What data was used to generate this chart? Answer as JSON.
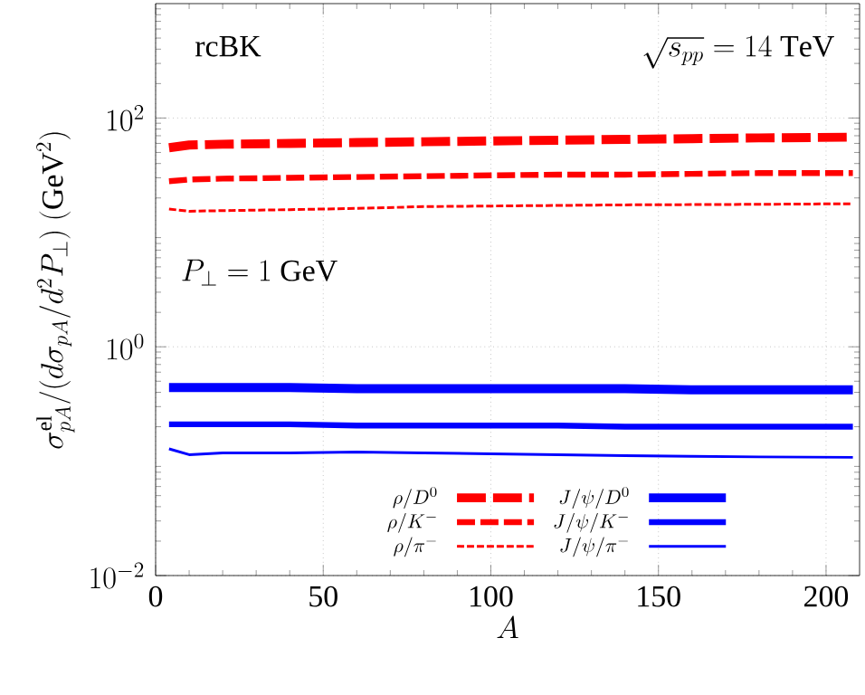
{
  "chart_data": {
    "type": "line",
    "xlabel": "A",
    "ylabel": "\\sigma^{\\mathrm{el}}_{pA}/(d\\sigma_{pA}/d^2P_\\perp)\\ (\\mathrm{GeV}^2)",
    "annotations": [
      "rcBK",
      "\\sqrt{s_{pp}} = 14\\ \\mathrm{TeV}",
      "P_\\perp = 1\\ \\mathrm{GeV}"
    ],
    "x": [
      4,
      10,
      20,
      40,
      60,
      80,
      100,
      120,
      140,
      160,
      180,
      208
    ],
    "series": [
      {
        "name": "\\rho/D^0",
        "color": "#ff0000",
        "line_style": "dashed",
        "values": [
          55,
          58,
          59,
          60,
          61,
          62,
          63,
          64,
          65,
          66,
          67,
          68
        ]
      },
      {
        "name": "\\rho/K^-",
        "color": "#ff0000",
        "line_style": "dashed",
        "values": [
          28,
          29,
          29.5,
          30,
          30.5,
          31,
          31.5,
          32,
          32,
          32.5,
          33,
          33
        ]
      },
      {
        "name": "\\rho/\\pi^-",
        "color": "#ff0000",
        "line_style": "dashed",
        "values": [
          16,
          15.3,
          15.5,
          15.8,
          16.2,
          16.8,
          17,
          17.2,
          17.4,
          17.5,
          17.6,
          17.8
        ]
      },
      {
        "name": "J/\\psi/D^0",
        "color": "#0000ff",
        "line_style": "solid",
        "values": [
          0.44,
          0.44,
          0.44,
          0.44,
          0.43,
          0.43,
          0.43,
          0.43,
          0.43,
          0.42,
          0.42,
          0.42
        ]
      },
      {
        "name": "J/\\psi/K^-",
        "color": "#0000ff",
        "line_style": "solid",
        "values": [
          0.21,
          0.21,
          0.21,
          0.21,
          0.205,
          0.205,
          0.205,
          0.205,
          0.2,
          0.2,
          0.2,
          0.2
        ]
      },
      {
        "name": "J/\\psi/\\pi^-",
        "color": "#0000ff",
        "line_style": "solid",
        "values": [
          0.128,
          0.114,
          0.118,
          0.118,
          0.12,
          0.118,
          0.116,
          0.114,
          0.112,
          0.11,
          0.109,
          0.108
        ]
      }
    ],
    "xlim": [
      0,
      210
    ],
    "xticks": [
      0,
      50,
      100,
      150,
      200
    ],
    "ylim": [
      0.01,
      1000
    ],
    "yticks": [
      {
        "value": 0.01,
        "label": "10^{-2}"
      },
      {
        "value": 1,
        "label": "10^{0}"
      },
      {
        "value": 100,
        "label": "10^{2}"
      }
    ],
    "log": "y",
    "grid": true,
    "legend": "bottom",
    "marker": "none"
  }
}
